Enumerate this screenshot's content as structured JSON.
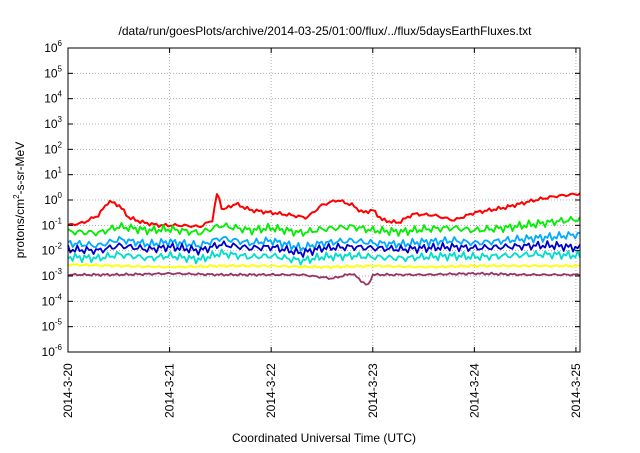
{
  "chart_data": {
    "type": "line",
    "title": "/data/run/goesPlots/archive/2014-03-25/01:00/flux/../flux/5daysEarthFluxes.txt",
    "xlabel": "Coordinated Universal Time (UTC)",
    "ylabel": {
      "base": "protons/cm",
      "sup": "2",
      "rest": "-s-sr-MeV"
    },
    "yscale": "log",
    "ylim_exponent": [
      -6,
      6
    ],
    "ytick_exponents": [
      -6,
      -5,
      -4,
      -3,
      -2,
      -1,
      0,
      1,
      2,
      3,
      4,
      5,
      6
    ],
    "ytick_base": "10",
    "xlim_days": [
      0,
      5.04
    ],
    "x_ticks": [
      {
        "day": 0,
        "label": "2014-3-20"
      },
      {
        "day": 1,
        "label": "2014-3-21"
      },
      {
        "day": 2,
        "label": "2014-3-22"
      },
      {
        "day": 3,
        "label": "2014-3-23"
      },
      {
        "day": 4,
        "label": "2014-3-24"
      },
      {
        "day": 5,
        "label": "2014-3-25"
      }
    ],
    "grid": true,
    "legend": "none",
    "series": [
      {
        "color": "#ff0000",
        "points": [
          [
            0,
            -1
          ],
          [
            0.15,
            -0.9
          ],
          [
            0.3,
            -0.6
          ],
          [
            0.4,
            -0.05
          ],
          [
            0.5,
            -0.2
          ],
          [
            0.6,
            -0.7
          ],
          [
            0.75,
            -0.9
          ],
          [
            0.9,
            -1.0
          ],
          [
            1.1,
            -1.0
          ],
          [
            1.3,
            -1.05
          ],
          [
            1.42,
            -0.8
          ],
          [
            1.47,
            0.3
          ],
          [
            1.52,
            -0.4
          ],
          [
            1.65,
            -0.15
          ],
          [
            1.8,
            -0.4
          ],
          [
            2.0,
            -0.5
          ],
          [
            2.2,
            -0.6
          ],
          [
            2.35,
            -0.7
          ],
          [
            2.5,
            -0.2
          ],
          [
            2.65,
            0.0
          ],
          [
            2.8,
            -0.2
          ],
          [
            2.9,
            -0.5
          ],
          [
            3.0,
            -0.4
          ],
          [
            3.1,
            -0.8
          ],
          [
            3.25,
            -0.9
          ],
          [
            3.4,
            -0.55
          ],
          [
            3.6,
            -0.6
          ],
          [
            3.8,
            -0.8
          ],
          [
            4.0,
            -0.5
          ],
          [
            4.3,
            -0.3
          ],
          [
            4.6,
            0.0
          ],
          [
            4.8,
            0.15
          ],
          [
            5.04,
            0.25
          ]
        ]
      },
      {
        "color": "#00ee00",
        "points": [
          [
            0,
            -1.25
          ],
          [
            0.3,
            -1.3
          ],
          [
            0.5,
            -1.05
          ],
          [
            0.8,
            -1.2
          ],
          [
            1.0,
            -1.15
          ],
          [
            1.3,
            -1.3
          ],
          [
            1.5,
            -1.0
          ],
          [
            1.8,
            -1.2
          ],
          [
            2.0,
            -1.1
          ],
          [
            2.3,
            -1.3
          ],
          [
            2.5,
            -1.15
          ],
          [
            2.8,
            -1.05
          ],
          [
            3.0,
            -1.2
          ],
          [
            3.3,
            -1.25
          ],
          [
            3.5,
            -1.15
          ],
          [
            3.8,
            -1.1
          ],
          [
            4.0,
            -1.2
          ],
          [
            4.3,
            -1.1
          ],
          [
            4.6,
            -0.95
          ],
          [
            4.8,
            -0.85
          ],
          [
            5.04,
            -0.75
          ]
        ]
      },
      {
        "color": "#00aaff",
        "points": [
          [
            0,
            -1.7
          ],
          [
            0.3,
            -1.8
          ],
          [
            0.5,
            -1.55
          ],
          [
            0.8,
            -1.75
          ],
          [
            1.0,
            -1.65
          ],
          [
            1.3,
            -1.8
          ],
          [
            1.5,
            -1.5
          ],
          [
            1.8,
            -1.7
          ],
          [
            2.0,
            -1.6
          ],
          [
            2.3,
            -1.9
          ],
          [
            2.5,
            -1.7
          ],
          [
            2.8,
            -1.6
          ],
          [
            3.0,
            -1.7
          ],
          [
            3.3,
            -1.75
          ],
          [
            3.5,
            -1.65
          ],
          [
            3.8,
            -1.6
          ],
          [
            4.0,
            -1.7
          ],
          [
            4.3,
            -1.6
          ],
          [
            4.6,
            -1.5
          ],
          [
            4.8,
            -1.45
          ],
          [
            5.04,
            -1.35
          ]
        ]
      },
      {
        "color": "#0000cc",
        "points": [
          [
            0,
            -1.95
          ],
          [
            0.3,
            -2.0
          ],
          [
            0.5,
            -1.8
          ],
          [
            0.8,
            -1.95
          ],
          [
            1.0,
            -1.85
          ],
          [
            1.3,
            -2.0
          ],
          [
            1.5,
            -1.75
          ],
          [
            1.8,
            -1.9
          ],
          [
            2.0,
            -1.85
          ],
          [
            2.3,
            -2.1
          ],
          [
            2.5,
            -1.9
          ],
          [
            2.8,
            -1.85
          ],
          [
            3.0,
            -1.9
          ],
          [
            3.3,
            -1.95
          ],
          [
            3.5,
            -1.9
          ],
          [
            3.8,
            -1.85
          ],
          [
            4.0,
            -1.9
          ],
          [
            4.3,
            -1.85
          ],
          [
            4.6,
            -1.8
          ],
          [
            4.8,
            -1.8
          ],
          [
            5.04,
            -1.9
          ]
        ]
      },
      {
        "color": "#00ddcc",
        "points": [
          [
            0,
            -2.25
          ],
          [
            0.3,
            -2.3
          ],
          [
            0.5,
            -2.15
          ],
          [
            0.8,
            -2.3
          ],
          [
            1.0,
            -2.2
          ],
          [
            1.3,
            -2.35
          ],
          [
            1.5,
            -2.1
          ],
          [
            1.8,
            -2.25
          ],
          [
            2.0,
            -2.2
          ],
          [
            2.3,
            -2.4
          ],
          [
            2.5,
            -2.25
          ],
          [
            2.8,
            -2.2
          ],
          [
            3.0,
            -2.25
          ],
          [
            3.3,
            -2.3
          ],
          [
            3.5,
            -2.25
          ],
          [
            3.8,
            -2.2
          ],
          [
            4.0,
            -2.25
          ],
          [
            4.3,
            -2.2
          ],
          [
            4.6,
            -2.15
          ],
          [
            4.8,
            -2.15
          ],
          [
            5.04,
            -2.2
          ]
        ]
      },
      {
        "color": "#ffff00",
        "points": [
          [
            0,
            -2.55
          ],
          [
            0.5,
            -2.6
          ],
          [
            1.0,
            -2.65
          ],
          [
            1.5,
            -2.6
          ],
          [
            2.0,
            -2.6
          ],
          [
            2.5,
            -2.65
          ],
          [
            3.0,
            -2.6
          ],
          [
            3.5,
            -2.65
          ],
          [
            4.0,
            -2.6
          ],
          [
            4.5,
            -2.6
          ],
          [
            5.04,
            -2.6
          ]
        ]
      },
      {
        "color": "#993366",
        "points": [
          [
            0,
            -2.95
          ],
          [
            0.5,
            -2.95
          ],
          [
            1.0,
            -2.9
          ],
          [
            1.5,
            -2.95
          ],
          [
            2.0,
            -2.95
          ],
          [
            2.3,
            -2.95
          ],
          [
            2.6,
            -3.1
          ],
          [
            2.8,
            -2.9
          ],
          [
            2.95,
            -3.4
          ],
          [
            3.0,
            -2.95
          ],
          [
            3.5,
            -2.95
          ],
          [
            4.0,
            -2.9
          ],
          [
            4.5,
            -2.95
          ],
          [
            5.04,
            -2.95
          ]
        ]
      }
    ]
  }
}
